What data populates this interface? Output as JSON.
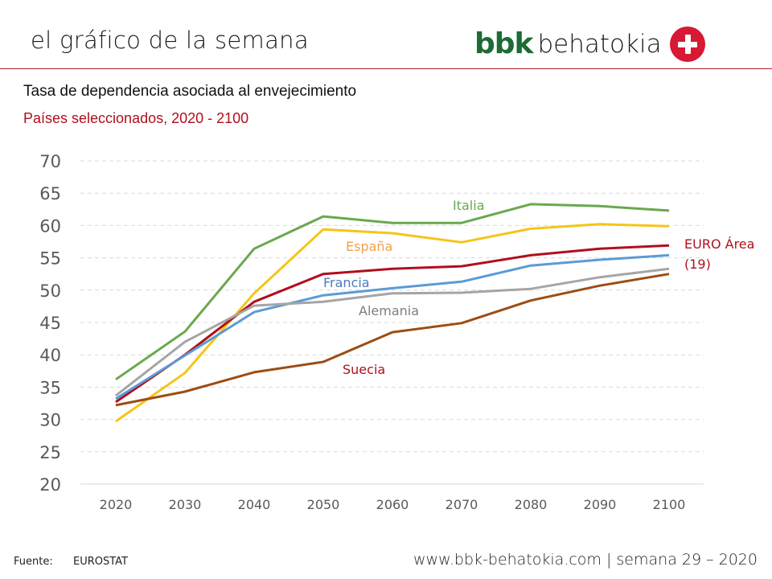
{
  "header": {
    "title": "el gráfico de la semana",
    "logo_bbk": "bbk",
    "logo_name": "behatokia",
    "logo_icon": "plus-circle-icon"
  },
  "chart_header": {
    "title": "Tasa de dependencia asociada al envejecimiento",
    "subtitle": "Países seleccionados, 2020 - 2100"
  },
  "footer": {
    "source_label": "Fuente:",
    "source_value": "EUROSTAT",
    "site": "www.bbk-behatokia.com | semana 29 – 2020"
  },
  "chart_data": {
    "type": "line",
    "title": "Tasa de dependencia asociada al envejecimiento",
    "subtitle": "Países seleccionados, 2020 - 2100",
    "xlabel": "",
    "ylabel": "",
    "x": [
      "2020",
      "2030",
      "2040",
      "2050",
      "2060",
      "2070",
      "2080",
      "2090",
      "2100"
    ],
    "ylim": [
      20,
      70
    ],
    "yticks": [
      20,
      25,
      30,
      35,
      40,
      45,
      50,
      55,
      60,
      65,
      70
    ],
    "grid": true,
    "legend": "inline-labels",
    "series": [
      {
        "name": "Italia",
        "color": "#6aa84f",
        "label_color": "#6aa84f",
        "values": [
          36.2,
          43.6,
          56.4,
          61.4,
          60.4,
          60.4,
          63.3,
          63.0,
          62.3
        ]
      },
      {
        "name": "España",
        "color": "#f5c518",
        "label_color": "#f0a04b",
        "values": [
          29.7,
          37.2,
          49.5,
          59.4,
          58.8,
          57.4,
          59.5,
          60.2,
          59.9
        ]
      },
      {
        "name": "EURO Área (19)",
        "color": "#b00f1e",
        "label_color": "#b00f1e",
        "values": [
          32.7,
          40.0,
          48.2,
          52.5,
          53.3,
          53.7,
          55.4,
          56.4,
          56.9
        ]
      },
      {
        "name": "Francia",
        "color": "#5b9bd5",
        "label_color": "#4a7bc0",
        "values": [
          33.2,
          39.9,
          46.6,
          49.2,
          50.3,
          51.3,
          53.8,
          54.7,
          55.4
        ]
      },
      {
        "name": "Alemania",
        "color": "#a5a5a5",
        "label_color": "#7f7f7f",
        "values": [
          33.7,
          42.0,
          47.6,
          48.2,
          49.5,
          49.6,
          50.2,
          52.0,
          53.3
        ]
      },
      {
        "name": "Suecia",
        "color": "#9c4d14",
        "label_color": "#b00f1e",
        "values": [
          32.2,
          34.3,
          37.3,
          38.9,
          43.5,
          44.9,
          48.4,
          50.7,
          52.5
        ]
      }
    ],
    "annotations": [
      {
        "text": "Italia",
        "series": "Italia"
      },
      {
        "text": "España",
        "series": "España"
      },
      {
        "text": "Francia",
        "series": "Francia"
      },
      {
        "text": "Alemania",
        "series": "Alemania"
      },
      {
        "text": "Suecia",
        "series": "Suecia"
      },
      {
        "text": "EURO Área",
        "series": "EURO Área (19)"
      },
      {
        "text": "(19)",
        "series": "EURO Área (19)"
      }
    ]
  }
}
